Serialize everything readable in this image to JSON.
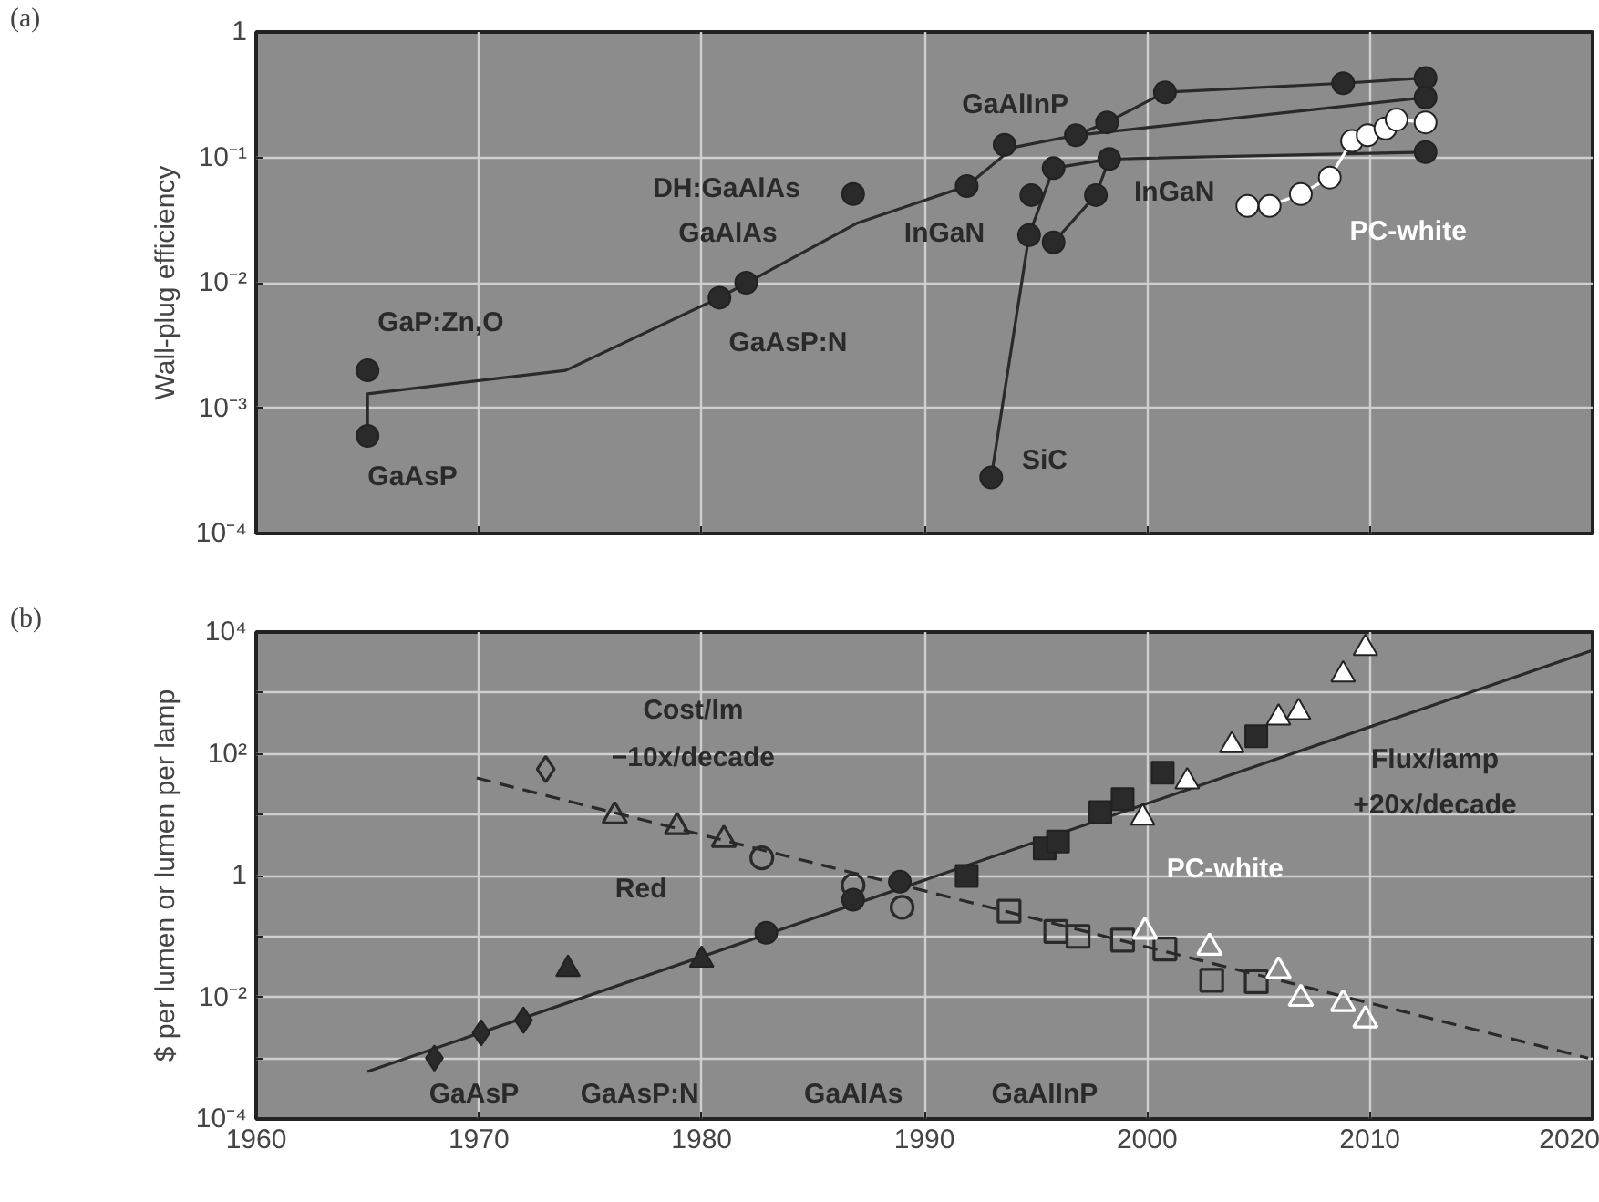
{
  "chart_data": [
    {
      "type": "scatter",
      "title": "(a)",
      "ylabel": "Wall-plug efficiency",
      "log": "y",
      "grid": true,
      "tick_labels": "y",
      "xlim": [
        1960,
        2020
      ],
      "xticks": [
        1960,
        1970,
        1980,
        1990,
        2000,
        2010,
        2020
      ],
      "ylim": [
        0.0001,
        1
      ],
      "yticks": [
        {
          "value": 0.0001,
          "label": "10⁻⁴"
        },
        {
          "value": 0.001,
          "label": "10⁻³"
        },
        {
          "value": 0.01,
          "label": "10⁻²"
        },
        {
          "value": 0.1,
          "label": "10⁻¹"
        },
        1
      ],
      "series": [
        {
          "type": "line",
          "marker": "none",
          "color": "#2a2a2a",
          "x": [
            1965,
            1965,
            1973.9,
            1980.8,
            1987,
            1991.9,
            1994,
            1996.8,
            1998.2,
            2000.8,
            2008.8,
            2012.5
          ],
          "values": [
            0.0006,
            0.0013,
            0.002,
            0.0076,
            0.03,
            0.059,
            0.12,
            0.15,
            0.19,
            0.33,
            0.39,
            0.43
          ]
        },
        {
          "type": "line",
          "marker": "none",
          "color": "#2a2a2a",
          "x": [
            1993,
            1994.7,
            1995.8,
            1998.3,
            2012.5
          ],
          "values": [
            0.00028,
            0.024,
            0.082,
            0.097,
            0.11
          ]
        },
        {
          "type": "line",
          "marker": "none",
          "color": "#2a2a2a",
          "x": [
            1995.8,
            1997.7,
            1998.3
          ],
          "values": [
            0.021,
            0.05,
            0.097
          ]
        },
        {
          "type": "line",
          "marker": "none",
          "color": "#2a2a2a",
          "x": [
            1996.8,
            2012.5
          ],
          "values": [
            0.15,
            0.3
          ]
        },
        {
          "marker": "circle",
          "color": "#2a2a2a",
          "x": [
            1965,
            1965,
            1980.8,
            1982,
            1986.8,
            1991.9,
            1993.6,
            1994.8,
            1994.7,
            1995.8,
            1995.8,
            1996.8,
            1997.7,
            1998.2,
            1998.3,
            1993,
            2000.8,
            2008.8,
            2012.5,
            2012.5,
            2012.5
          ],
          "values": [
            0.002,
            0.0006,
            0.0076,
            0.01,
            0.051,
            0.059,
            0.126,
            0.05,
            0.024,
            0.021,
            0.082,
            0.15,
            0.05,
            0.19,
            0.097,
            0.00028,
            0.33,
            0.39,
            0.43,
            0.3,
            0.11
          ]
        },
        {
          "type": "line",
          "name": "PC-white",
          "marker": "circle",
          "color": "#ffffff",
          "x": [
            2004.5,
            2005.5,
            2006.9,
            2008.2,
            2009.2,
            2009.9,
            2010.7,
            2011.2,
            2012.5
          ],
          "values": [
            0.041,
            0.041,
            0.051,
            0.069,
            0.135,
            0.15,
            0.17,
            0.2,
            0.19
          ]
        }
      ],
      "annotations": [
        "GaP:Zn,O",
        "GaAsP",
        "GaAsP:N",
        "GaAlAs",
        "DH:GaAlAs",
        "GaAlInP",
        "InGaN",
        "InGaN",
        "SiC"
      ]
    },
    {
      "type": "scatter",
      "title": "(b)",
      "ylabel": "$ per lumen or lumen per lamp",
      "log": "y",
      "grid": true,
      "xlim": [
        1960,
        2020
      ],
      "xticks": [
        1960,
        1970,
        1980,
        1990,
        2000,
        2010,
        2020
      ],
      "ylim": [
        0.0001,
        10000
      ],
      "yticks": [
        {
          "value": 0.0001,
          "label": "10⁻⁴"
        },
        {
          "value": 0.001,
          "label": null
        },
        {
          "value": 0.01,
          "label": "10⁻²"
        },
        {
          "value": 0.1,
          "label": null
        },
        1,
        {
          "value": 10,
          "label": null
        },
        {
          "value": 100,
          "label": "10²"
        },
        {
          "value": 1000,
          "label": null
        },
        {
          "value": 10000,
          "label": "10⁴"
        }
      ],
      "series": [
        {
          "type": "line",
          "marker": "none",
          "line_style": "solid",
          "color": "#2a2a2a",
          "x": [
            1965,
            2020
          ],
          "values": [
            0.0006,
            5000
          ]
        },
        {
          "type": "line",
          "marker": "none",
          "line_style": "dashed",
          "color": "#2a2a2a",
          "x": [
            1969.9,
            2019.8
          ],
          "values": [
            40,
            0.001
          ]
        },
        {
          "marker": "diamond",
          "color": "#2a2a2a",
          "x": [
            1968,
            1970.1,
            1972
          ],
          "values": [
            0.001,
            0.0026,
            0.0042
          ]
        },
        {
          "marker": "triangle",
          "color": "#2a2a2a",
          "x": [
            1974,
            1980
          ],
          "values": [
            0.029,
            0.041
          ]
        },
        {
          "marker": "circle",
          "color": "#2a2a2a",
          "x": [
            1982.9,
            1986.8,
            1988.9
          ],
          "values": [
            0.115,
            0.4,
            0.79
          ]
        },
        {
          "marker": "square",
          "color": "#2a2a2a",
          "x": [
            1991.9,
            1995.4,
            1996,
            1997.9,
            1998.9,
            2000.7,
            2004.9
          ],
          "values": [
            0.98,
            2.8,
            3.6,
            11,
            18,
            49,
            195
          ]
        },
        {
          "name": "PC-white",
          "marker": "triangle",
          "color": "#ffffff",
          "x": [
            1999.8,
            2001.8,
            2003.8,
            2005.9,
            2006.8,
            2008.8,
            2009.8
          ],
          "values": [
            8.9,
            35,
            138,
            390,
            480,
            2000,
            5400
          ]
        },
        {
          "marker": "diamond_open",
          "color": "#2a2a2a",
          "x": [
            1973
          ],
          "values": [
            56
          ]
        },
        {
          "marker": "triangle_open",
          "color": "#2a2a2a",
          "x": [
            1976.1,
            1978.9,
            1981
          ],
          "values": [
            9.5,
            6.3,
            3.9
          ]
        },
        {
          "marker": "circle_open",
          "color": "#2a2a2a",
          "x": [
            1982.7,
            1986.8,
            1989
          ],
          "values": [
            1.95,
            0.69,
            0.3
          ]
        },
        {
          "marker": "square_open",
          "color": "#2a2a2a",
          "x": [
            1993.8,
            1995.9,
            1996.9,
            1998.9,
            2000.8,
            2002.9,
            2004.9
          ],
          "values": [
            0.26,
            0.12,
            0.1,
            0.087,
            0.062,
            0.019,
            0.018
          ]
        },
        {
          "marker": "triangle_open",
          "color": "#ffffff",
          "x": [
            1999.9,
            2002.8,
            2005.9,
            2006.9,
            2008.8,
            2009.8
          ],
          "values": [
            0.12,
            0.066,
            0.027,
            0.0095,
            0.0078,
            0.0042
          ]
        }
      ],
      "annotations": [
        "Cost/lm",
        "−10x/decade",
        "Red",
        "Flux/lamp",
        "+20x/decade",
        "GaAsP",
        "GaAsP:N",
        "GaAlAs",
        "GaAlInP"
      ]
    }
  ]
}
